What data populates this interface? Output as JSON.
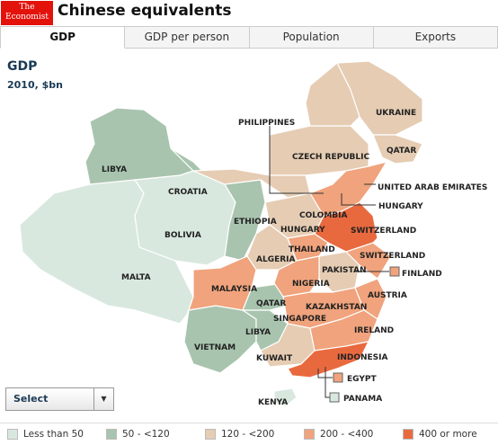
{
  "header": {
    "logo_line1": "The",
    "logo_line2": "Economist",
    "title": "Chinese equivalents"
  },
  "tabs": [
    {
      "label": "GDP",
      "active": true
    },
    {
      "label": "GDP per person",
      "active": false
    },
    {
      "label": "Population",
      "active": false
    },
    {
      "label": "Exports",
      "active": false
    }
  ],
  "map": {
    "title": "GDP",
    "subtitle": "2010, $bn",
    "colors": {
      "lt50": "#d8e8de",
      "50to120": "#a8c4ae",
      "120to200": "#e5ccb3",
      "200to400": "#f0a37c",
      "400plus": "#e9693f",
      "border": "#ffffff"
    },
    "labels": [
      "LIBYA",
      "CROATIA",
      "BOLIVIA",
      "MALTA",
      "ETHIOPIA",
      "PHILIPPINES",
      "UKRAINE",
      "CZECH REPUBLIC",
      "QATAR",
      "UNITED ARAB EMIRATES",
      "HUNGARY",
      "COLOMBIA",
      "HUNGARY",
      "SWITZERLAND",
      "ALGERIA",
      "THAILAND",
      "SWITZERLAND",
      "PAKISTAN",
      "FINLAND",
      "MALAYSIA",
      "NIGERIA",
      "QATAR",
      "KAZAKHSTAN",
      "AUSTRIA",
      "SINGAPORE",
      "LIBYA",
      "IRELAND",
      "VIETNAM",
      "KUWAIT",
      "INDONESIA",
      "EGYPT",
      "PANAMA",
      "KENYA"
    ]
  },
  "select": {
    "label": "Select"
  },
  "legend": [
    {
      "label": "Less than 50",
      "color": "#d8e8de"
    },
    {
      "label": "50 - <120",
      "color": "#a8c4ae"
    },
    {
      "label": "120 - <200",
      "color": "#e5ccb3"
    },
    {
      "label": "200 - <400",
      "color": "#f0a37c"
    },
    {
      "label": "400 or more",
      "color": "#e9693f"
    }
  ]
}
